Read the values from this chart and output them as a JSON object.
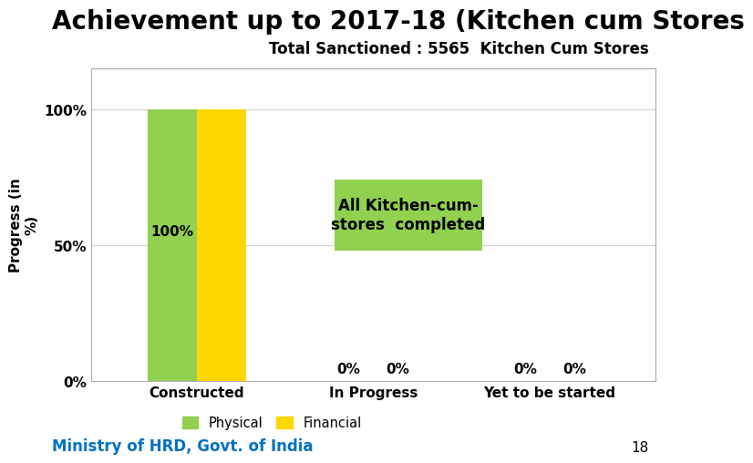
{
  "title": "Achievement up to 2017-18 (Kitchen cum Stores",
  "subtitle": "Total Sanctioned : 5565  Kitchen Cum Stores",
  "ylabel": "Progress (in\n%)",
  "categories": [
    "Constructed",
    "In Progress",
    "Yet to be started"
  ],
  "physical_values": [
    100,
    0,
    0
  ],
  "financial_values": [
    100,
    0,
    0
  ],
  "physical_color": "#92D050",
  "financial_color": "#FFD700",
  "bar_labels_physical": [
    "100%",
    "0%",
    "0%"
  ],
  "bar_labels_financial": [
    "",
    "0%",
    "0%"
  ],
  "annotation_text": "All Kitchen-cum-\nstores  completed",
  "annotation_color": "#92D050",
  "ylim": [
    0,
    115
  ],
  "yticks": [
    0,
    50,
    100
  ],
  "ytick_labels": [
    "0%",
    "50%",
    "100%"
  ],
  "background_color": "#FFFFFF",
  "title_fontsize": 20,
  "subtitle_fontsize": 12,
  "axis_fontsize": 11,
  "bar_label_fontsize": 11,
  "legend_labels": [
    "Physical",
    "Financial"
  ],
  "footer_text": "Ministry of HRD, Govt. of India",
  "footer_color": "#0070C0",
  "page_number": "18",
  "blue_line_color": "#4472C4",
  "subtitle_bg_color": "#FFFF00",
  "chart_border_color": "#AAAAAA"
}
